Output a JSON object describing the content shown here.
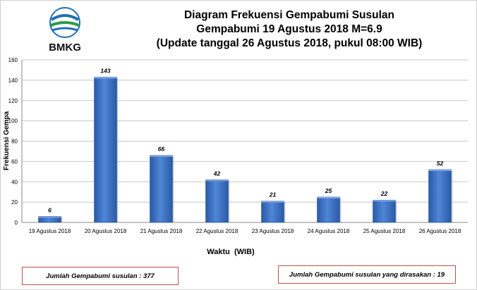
{
  "header": {
    "logo_text": "BMKG",
    "title_line1": "Diagram Frekuensi Gempabumi Susulan",
    "title_line2": "Gempabumi 19 Agustus 2018 M=6.9",
    "title_line3": "(Update tanggal 26 Agustus 2018, pukul 08:00 WIB)"
  },
  "chart_data": {
    "type": "bar",
    "categories": [
      "19 Agustus 2018",
      "20 Agustus 2018",
      "21 Agustus 2018",
      "22 Agustus 2018",
      "23 Agustus 2018",
      "24 Agustus 2018",
      "25 Agustus 2018",
      "26 Agustus 2018"
    ],
    "values": [
      6,
      143,
      66,
      42,
      21,
      25,
      22,
      52
    ],
    "xlabel": "Waktu  (WIB)",
    "ylabel": "Frekuensi Gempa",
    "ylim": [
      0,
      160
    ],
    "yticks": [
      0,
      20,
      40,
      60,
      80,
      100,
      120,
      140,
      160
    ],
    "grid": true,
    "bar_color": "#3d72c4"
  },
  "summary": {
    "total_label": "Jumlah Gempabumi susulan : 377",
    "felt_label": "Jumlah Gempabumi susulan yang dirasakan : 19"
  }
}
